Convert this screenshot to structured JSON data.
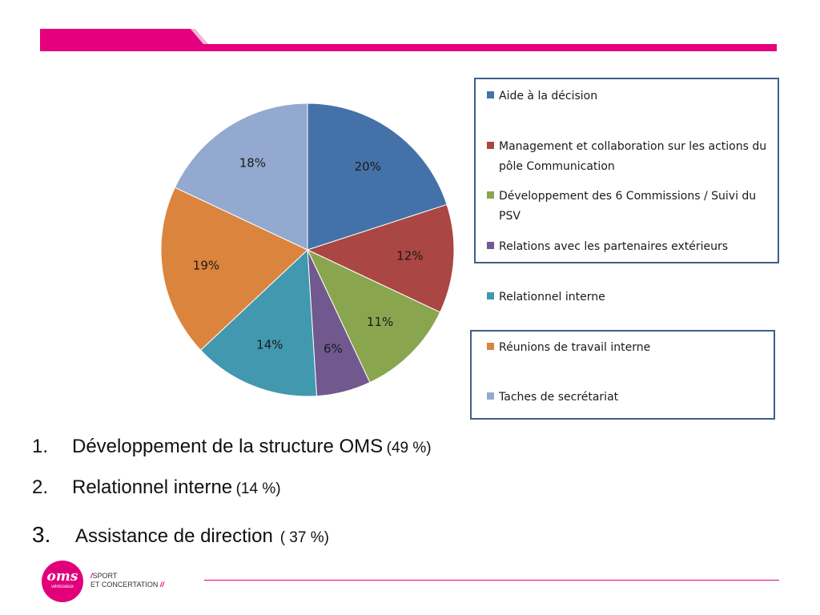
{
  "colors": {
    "accent": "#E5007D",
    "legend_border": "#3E5F87"
  },
  "chart_data": {
    "type": "pie",
    "title": "",
    "series": [
      {
        "values": [
          20,
          12,
          11,
          6,
          14,
          19,
          18
        ],
        "unit": "%"
      }
    ],
    "slice_labels": [
      "20%",
      "12%",
      "11%",
      "6%",
      "14%",
      "19%",
      "18%"
    ],
    "legend": [
      {
        "label": "Aide à la décision",
        "color": "#4472A8"
      },
      {
        "label": "Management et collaboration sur les actions du pôle Communication",
        "color": "#AA4643"
      },
      {
        "label": "Développement des 6 Commissions / Suivi du PSV",
        "color": "#89A54E"
      },
      {
        "label": "Relations avec les partenaires extérieurs",
        "color": "#71588F"
      },
      {
        "label": "Relationnel interne",
        "color": "#4198AF"
      },
      {
        "label": "Réunions de travail interne",
        "color": "#DB843D"
      },
      {
        "label": "Taches de secrétariat",
        "color": "#93A9CF"
      }
    ],
    "legend_placement": "right"
  },
  "summary": [
    {
      "number": "1.",
      "text": "Développement de la structure OMS",
      "pct": "(49 %)"
    },
    {
      "number": "2.",
      "text": "Relationnel interne",
      "pct": "(14 %)"
    },
    {
      "number": "3.",
      "text": "Assistance de direction",
      "pct": "( 37 %)"
    }
  ],
  "footer": {
    "logo_text": "oms",
    "logo_sub": "vénissieux",
    "tagline_line1": "SPORT",
    "tagline_line2": "ET CONCERTATION",
    "slash1": "/",
    "slash2": "//"
  }
}
